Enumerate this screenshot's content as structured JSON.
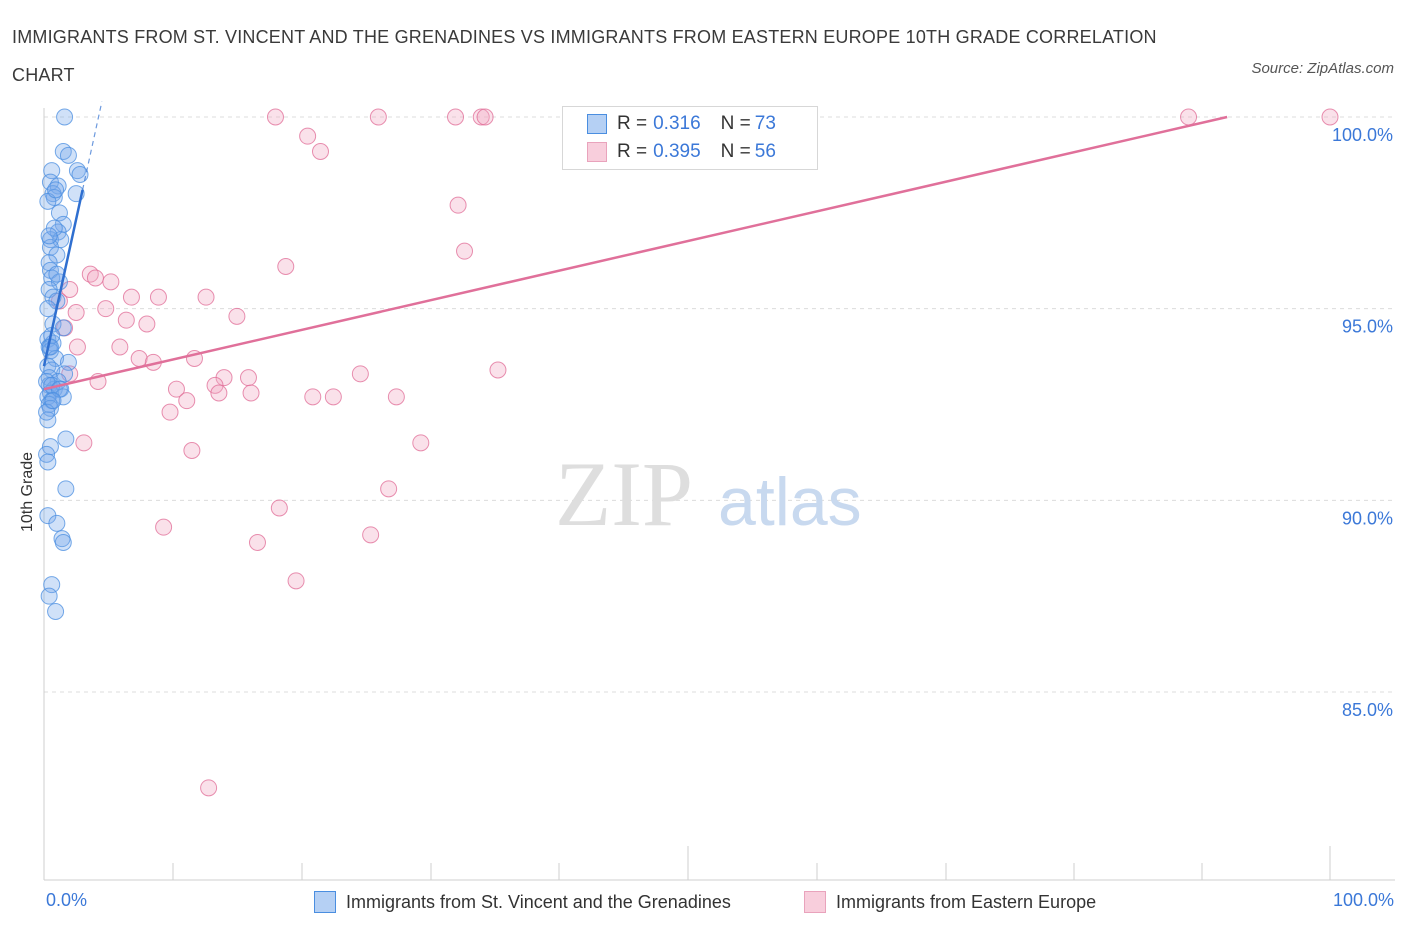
{
  "title": "IMMIGRANTS FROM ST. VINCENT AND THE GRENADINES VS IMMIGRANTS FROM EASTERN EUROPE 10TH GRADE CORRELATION CHART",
  "source": "Source: ZipAtlas.com",
  "colors": {
    "blue": "#4a8ee0",
    "blue_fill": "rgba(120,170,235,0.35)",
    "blue_line": "#2f6fd0",
    "pink": "#e06b95",
    "pink_fill": "rgba(240,170,195,0.35)",
    "pink_line": "#e0709a",
    "grid": "#dcdcdc",
    "axis_text": "#3b78d8"
  },
  "legend": {
    "r_label": "R =",
    "n_label": "N =",
    "series1": {
      "r": "0.316",
      "n": "73"
    },
    "series2": {
      "r": "0.395",
      "n": "56"
    }
  },
  "bottom_legend": {
    "series1": "Immigrants from St. Vincent and the Grenadines",
    "series2": "Immigrants from Eastern Europe"
  },
  "watermark": {
    "zip": "ZIP",
    "atlas": "atlas"
  },
  "chart_data": {
    "type": "scatter",
    "title": "IMMIGRANTS FROM ST. VINCENT AND THE GRENADINES VS IMMIGRANTS FROM EASTERN EUROPE 10TH GRADE CORRELATION CHART",
    "xlabel": "",
    "ylabel": "10th Grade",
    "xlim": [
      0,
      100
    ],
    "ylim": [
      80.5,
      100.5
    ],
    "x_tick_labels": [
      "0.0%",
      "100.0%"
    ],
    "y_ticks": [
      85,
      90,
      95,
      100
    ],
    "y_tick_labels": [
      "85.0%",
      "90.0%",
      "95.0%",
      "100.0%"
    ],
    "grid": true,
    "series": [
      {
        "name": "Immigrants from St. Vincent and the Grenadines",
        "r": 0.316,
        "n": 73,
        "trend": {
          "x": [
            0.0,
            3.0
          ],
          "y": [
            93.5,
            98.1
          ]
        },
        "points": [
          [
            1.6,
            100.0
          ],
          [
            1.5,
            99.1
          ],
          [
            1.9,
            99.0
          ],
          [
            0.6,
            98.6
          ],
          [
            2.6,
            98.6
          ],
          [
            2.8,
            98.5
          ],
          [
            0.5,
            98.3
          ],
          [
            1.1,
            98.2
          ],
          [
            0.7,
            98.0
          ],
          [
            2.5,
            98.0
          ],
          [
            0.8,
            97.9
          ],
          [
            1.2,
            97.5
          ],
          [
            1.5,
            97.2
          ],
          [
            1.1,
            97.0
          ],
          [
            0.5,
            96.8
          ],
          [
            1.3,
            96.8
          ],
          [
            0.5,
            96.6
          ],
          [
            1.0,
            96.4
          ],
          [
            0.4,
            96.2
          ],
          [
            0.5,
            96.0
          ],
          [
            0.6,
            95.8
          ],
          [
            1.2,
            95.7
          ],
          [
            0.4,
            95.5
          ],
          [
            0.7,
            95.3
          ],
          [
            1.0,
            95.2
          ],
          [
            0.3,
            95.0
          ],
          [
            0.7,
            94.6
          ],
          [
            1.5,
            94.5
          ],
          [
            0.3,
            94.2
          ],
          [
            0.4,
            94.0
          ],
          [
            0.7,
            94.1
          ],
          [
            0.5,
            93.9
          ],
          [
            0.9,
            93.7
          ],
          [
            1.9,
            93.6
          ],
          [
            0.3,
            93.5
          ],
          [
            0.6,
            93.4
          ],
          [
            1.6,
            93.3
          ],
          [
            0.4,
            93.2
          ],
          [
            1.1,
            93.1
          ],
          [
            0.4,
            93.0
          ],
          [
            0.8,
            92.9
          ],
          [
            1.3,
            92.9
          ],
          [
            0.5,
            92.8
          ],
          [
            0.3,
            92.7
          ],
          [
            1.5,
            92.7
          ],
          [
            0.6,
            92.6
          ],
          [
            0.4,
            92.5
          ],
          [
            0.5,
            92.4
          ],
          [
            0.3,
            92.1
          ],
          [
            1.7,
            91.6
          ],
          [
            0.5,
            91.4
          ],
          [
            0.2,
            91.2
          ],
          [
            0.3,
            91.0
          ],
          [
            1.7,
            90.3
          ],
          [
            0.3,
            89.6
          ],
          [
            1.0,
            89.4
          ],
          [
            1.4,
            89.0
          ],
          [
            1.5,
            88.9
          ],
          [
            0.6,
            87.8
          ],
          [
            0.4,
            87.5
          ],
          [
            0.9,
            87.1
          ],
          [
            0.2,
            92.3
          ],
          [
            0.2,
            93.1
          ],
          [
            0.6,
            94.3
          ],
          [
            1.0,
            95.9
          ],
          [
            0.8,
            97.1
          ],
          [
            0.3,
            97.8
          ],
          [
            0.9,
            98.1
          ],
          [
            0.4,
            96.9
          ],
          [
            0.6,
            93.0
          ],
          [
            1.2,
            92.9
          ],
          [
            0.7,
            92.6
          ],
          [
            0.5,
            94.0
          ]
        ]
      },
      {
        "name": "Immigrants from Eastern Europe",
        "r": 0.395,
        "n": 56,
        "trend": {
          "x": [
            0.0,
            92.0
          ],
          "y": [
            92.9,
            100.0
          ]
        },
        "points": [
          [
            18.0,
            100.0
          ],
          [
            26.0,
            100.0
          ],
          [
            32.0,
            100.0
          ],
          [
            34.0,
            100.0
          ],
          [
            34.3,
            100.0
          ],
          [
            89.0,
            100.0
          ],
          [
            100.0,
            100.0
          ],
          [
            20.5,
            99.5
          ],
          [
            21.5,
            99.1
          ],
          [
            32.2,
            97.7
          ],
          [
            32.7,
            96.5
          ],
          [
            18.8,
            96.1
          ],
          [
            3.6,
            95.9
          ],
          [
            4.0,
            95.8
          ],
          [
            5.2,
            95.7
          ],
          [
            2.0,
            95.5
          ],
          [
            6.8,
            95.3
          ],
          [
            8.9,
            95.3
          ],
          [
            12.6,
            95.3
          ],
          [
            1.2,
            95.2
          ],
          [
            4.8,
            95.0
          ],
          [
            2.5,
            94.9
          ],
          [
            15.0,
            94.8
          ],
          [
            6.4,
            94.7
          ],
          [
            8.0,
            94.6
          ],
          [
            1.6,
            94.5
          ],
          [
            5.9,
            94.0
          ],
          [
            7.4,
            93.7
          ],
          [
            8.5,
            93.6
          ],
          [
            11.7,
            93.7
          ],
          [
            14.0,
            93.2
          ],
          [
            15.9,
            93.2
          ],
          [
            24.6,
            93.3
          ],
          [
            35.3,
            93.4
          ],
          [
            13.3,
            93.0
          ],
          [
            10.3,
            92.9
          ],
          [
            13.6,
            92.8
          ],
          [
            16.1,
            92.8
          ],
          [
            20.9,
            92.7
          ],
          [
            22.5,
            92.7
          ],
          [
            27.4,
            92.7
          ],
          [
            11.1,
            92.6
          ],
          [
            9.8,
            92.3
          ],
          [
            2.0,
            93.3
          ],
          [
            3.1,
            91.5
          ],
          [
            29.3,
            91.5
          ],
          [
            11.5,
            91.3
          ],
          [
            26.8,
            90.3
          ],
          [
            18.3,
            89.8
          ],
          [
            9.3,
            89.3
          ],
          [
            25.4,
            89.1
          ],
          [
            16.6,
            88.9
          ],
          [
            19.6,
            87.9
          ],
          [
            12.8,
            82.5
          ],
          [
            2.6,
            94.0
          ],
          [
            4.2,
            93.1
          ]
        ]
      }
    ]
  }
}
